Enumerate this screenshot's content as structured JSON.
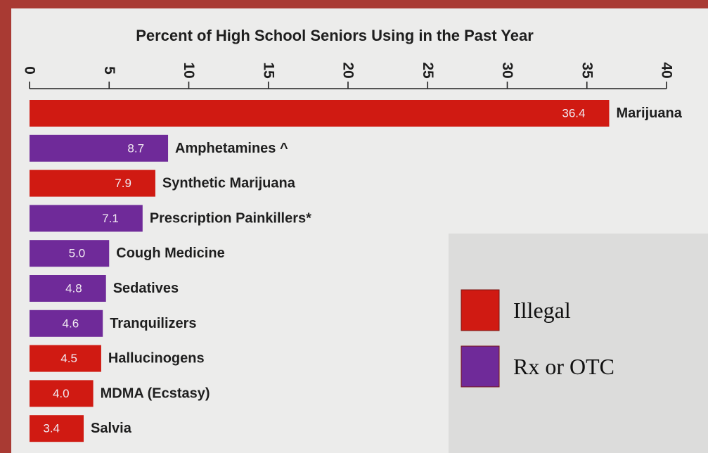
{
  "chart_data": {
    "type": "bar",
    "orientation": "horizontal",
    "title": "Percent of High School Seniors Using in the Past Year",
    "xlim": [
      0,
      40
    ],
    "ticks": [
      "0",
      "5",
      "10",
      "15",
      "20",
      "25",
      "30",
      "35",
      "40"
    ],
    "categories": [
      "Marijuana",
      "Amphetamines ^",
      "Synthetic Marijuana",
      "Prescription Painkillers*",
      "Cough Medicine",
      "Sedatives",
      "Tranquilizers",
      "Hallucinogens",
      "MDMA (Ecstasy)",
      "Salvia"
    ],
    "values": [
      36.4,
      8.7,
      7.9,
      7.1,
      5.0,
      4.8,
      4.6,
      4.5,
      4.0,
      3.4
    ],
    "value_labels": [
      "36.4",
      "8.7",
      "7.9",
      "7.1",
      "5.0",
      "4.8",
      "4.6",
      "4.5",
      "4.0",
      "3.4"
    ],
    "groups": [
      "illegal",
      "rx",
      "illegal",
      "rx",
      "rx",
      "rx",
      "rx",
      "illegal",
      "illegal",
      "illegal"
    ],
    "legend": [
      {
        "key": "illegal",
        "label": "Illegal",
        "color": "#d01a12"
      },
      {
        "key": "rx",
        "label": "Rx or OTC",
        "color": "#6f2a99"
      }
    ],
    "legend_position": "lower-right",
    "grid": false
  },
  "colors": {
    "frame": "#a93a33",
    "paper": "#ececeb",
    "axis": "#222222",
    "text": "#1e1e1e",
    "bar_label": "#f1eaf2"
  }
}
